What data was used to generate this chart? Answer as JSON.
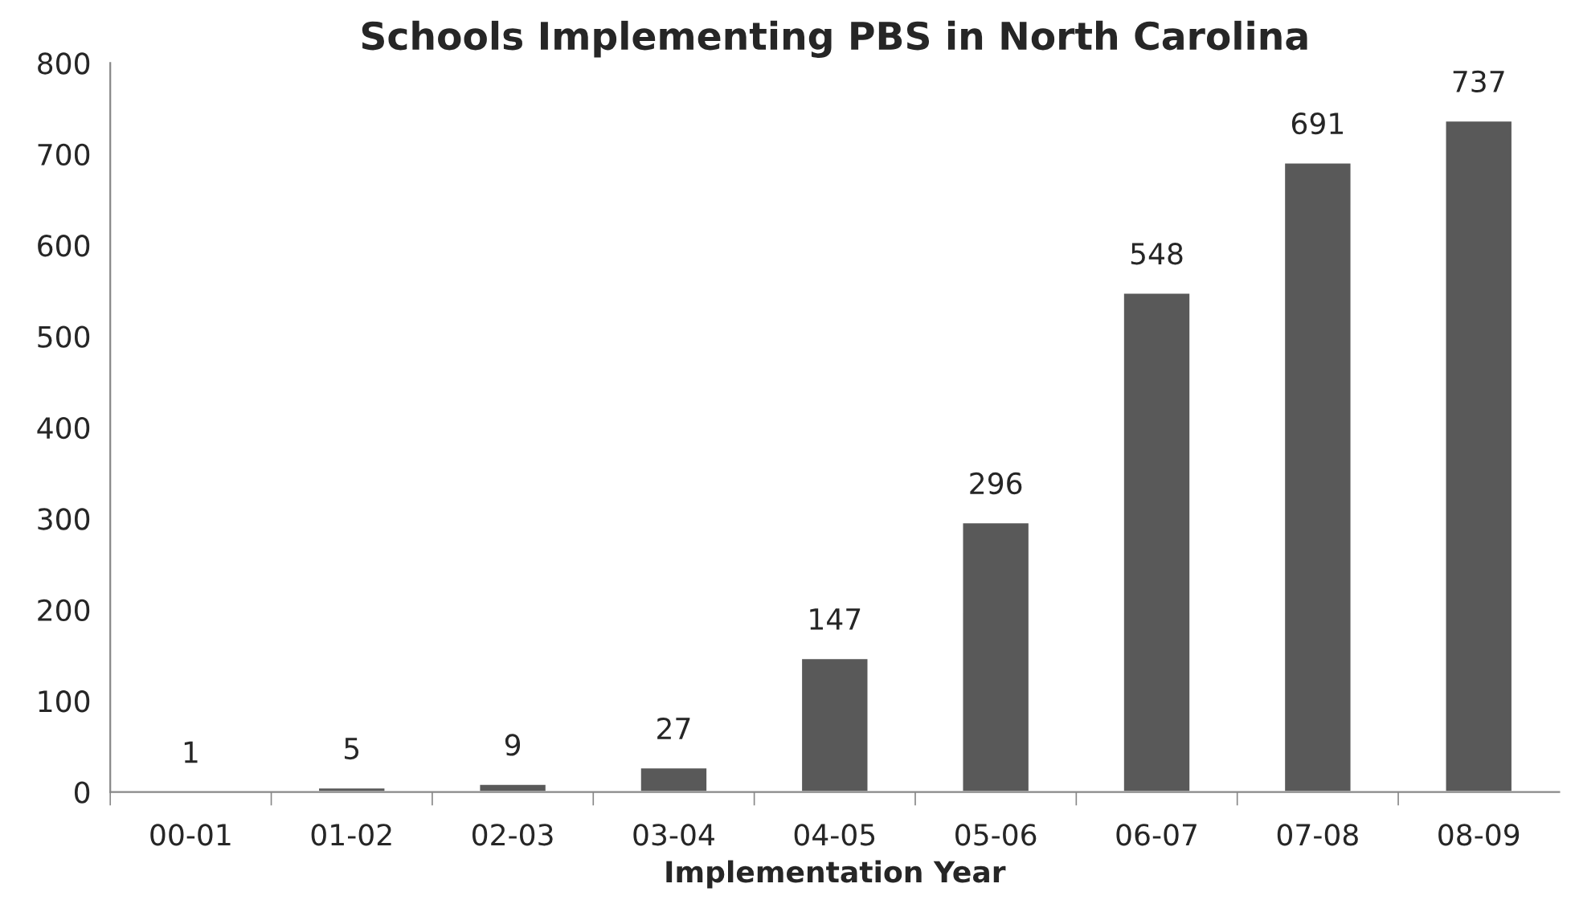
{
  "chart_data": {
    "type": "bar",
    "title": "Schools Implementing PBS in North Carolina",
    "xlabel": "Implementation Year",
    "categories": [
      "00-01",
      "01-02",
      "02-03",
      "03-04",
      "04-05",
      "05-06",
      "06-07",
      "07-08",
      "08-09"
    ],
    "values": [
      1,
      5,
      9,
      27,
      147,
      296,
      548,
      691,
      737
    ],
    "color": "#595959",
    "ylim": [
      0,
      800
    ],
    "yticks": [
      0,
      100,
      200,
      300,
      400,
      500,
      600,
      700,
      800
    ],
    "grid": false,
    "data_labels": true
  }
}
